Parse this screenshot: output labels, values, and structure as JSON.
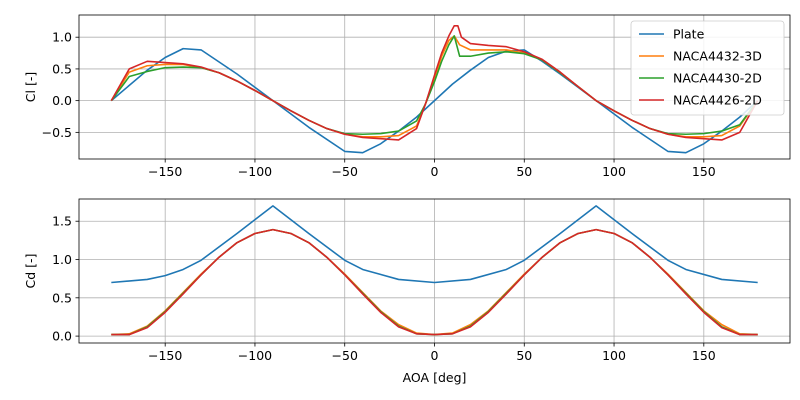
{
  "chart_data": [
    {
      "type": "line",
      "xlabel": "",
      "ylabel": "Cl [-]",
      "xlim": [
        -198,
        198
      ],
      "ylim": [
        -0.92,
        1.35
      ],
      "xticks": [
        -150,
        -100,
        -50,
        0,
        50,
        100,
        150
      ],
      "xtick_labels": [
        "−150",
        "−100",
        "−50",
        "0",
        "50",
        "100",
        "150"
      ],
      "yticks": [
        -0.5,
        0.0,
        0.5,
        1.0
      ],
      "ytick_labels": [
        "−0.5",
        "0.0",
        "0.5",
        "1.0"
      ],
      "grid": true,
      "legend": "upper right",
      "series": [
        {
          "name": "Plate",
          "color": "#1f77b4",
          "x": [
            -180,
            -160,
            -150,
            -140,
            -130,
            -110,
            -90,
            -70,
            -50,
            -40,
            -30,
            -20,
            -10,
            0,
            10,
            20,
            30,
            40,
            50,
            60,
            70,
            90,
            110,
            130,
            140,
            150,
            160,
            170,
            180
          ],
          "y": [
            0.0,
            0.48,
            0.68,
            0.82,
            0.8,
            0.42,
            0.0,
            -0.42,
            -0.8,
            -0.82,
            -0.68,
            -0.48,
            -0.26,
            0.0,
            0.26,
            0.48,
            0.68,
            0.78,
            0.8,
            0.62,
            0.42,
            0.0,
            -0.42,
            -0.8,
            -0.82,
            -0.68,
            -0.48,
            -0.26,
            0.0
          ]
        },
        {
          "name": "NACA4432-3D",
          "color": "#ff7f0e",
          "x": [
            -180,
            -170,
            -160,
            -150,
            -140,
            -130,
            -120,
            -110,
            -100,
            -90,
            -80,
            -70,
            -60,
            -50,
            -40,
            -30,
            -20,
            -10,
            -5,
            0,
            4,
            8,
            11,
            14,
            20,
            30,
            40,
            50,
            60,
            70,
            80,
            90,
            100,
            110,
            120,
            130,
            140,
            150,
            160,
            170,
            180
          ],
          "y": [
            0.0,
            0.45,
            0.55,
            0.57,
            0.57,
            0.52,
            0.44,
            0.31,
            0.16,
            0.0,
            -0.16,
            -0.31,
            -0.44,
            -0.53,
            -0.57,
            -0.57,
            -0.55,
            -0.4,
            -0.05,
            0.35,
            0.7,
            0.95,
            1.02,
            0.88,
            0.8,
            0.8,
            0.8,
            0.75,
            0.64,
            0.44,
            0.22,
            0.0,
            -0.16,
            -0.31,
            -0.44,
            -0.53,
            -0.57,
            -0.57,
            -0.55,
            -0.4,
            0.0
          ]
        },
        {
          "name": "NACA4430-2D",
          "color": "#2ca02c",
          "x": [
            -180,
            -170,
            -160,
            -150,
            -140,
            -130,
            -120,
            -110,
            -100,
            -90,
            -80,
            -70,
            -60,
            -50,
            -40,
            -30,
            -20,
            -10,
            -5,
            0,
            4,
            8,
            11,
            14,
            20,
            30,
            40,
            50,
            60,
            70,
            80,
            90,
            100,
            110,
            120,
            130,
            140,
            150,
            160,
            170,
            180
          ],
          "y": [
            0.0,
            0.38,
            0.46,
            0.52,
            0.53,
            0.52,
            0.44,
            0.31,
            0.16,
            0.0,
            -0.16,
            -0.31,
            -0.44,
            -0.52,
            -0.53,
            -0.52,
            -0.48,
            -0.32,
            -0.05,
            0.3,
            0.62,
            0.88,
            1.02,
            0.7,
            0.7,
            0.75,
            0.77,
            0.74,
            0.64,
            0.44,
            0.22,
            0.0,
            -0.16,
            -0.31,
            -0.44,
            -0.52,
            -0.53,
            -0.52,
            -0.48,
            -0.38,
            0.0
          ]
        },
        {
          "name": "NACA4426-2D",
          "color": "#d62728",
          "x": [
            -180,
            -170,
            -160,
            -150,
            -140,
            -130,
            -120,
            -110,
            -100,
            -90,
            -80,
            -70,
            -60,
            -50,
            -40,
            -30,
            -20,
            -10,
            -5,
            0,
            4,
            8,
            11,
            13,
            15,
            20,
            30,
            40,
            50,
            60,
            70,
            80,
            90,
            100,
            110,
            120,
            130,
            140,
            150,
            160,
            170,
            180
          ],
          "y": [
            0.0,
            0.5,
            0.62,
            0.6,
            0.58,
            0.53,
            0.44,
            0.31,
            0.16,
            0.0,
            -0.16,
            -0.31,
            -0.44,
            -0.53,
            -0.58,
            -0.6,
            -0.62,
            -0.44,
            -0.05,
            0.4,
            0.75,
            1.02,
            1.18,
            1.18,
            1.0,
            0.9,
            0.87,
            0.85,
            0.77,
            0.65,
            0.45,
            0.22,
            0.0,
            -0.16,
            -0.31,
            -0.44,
            -0.53,
            -0.58,
            -0.6,
            -0.62,
            -0.5,
            0.0
          ]
        }
      ]
    },
    {
      "type": "line",
      "xlabel": "AOA [deg]",
      "ylabel": "Cd [-]",
      "xlim": [
        -198,
        198
      ],
      "ylim": [
        -0.09,
        1.79
      ],
      "xticks": [
        -150,
        -100,
        -50,
        0,
        50,
        100,
        150
      ],
      "xtick_labels": [
        "−150",
        "−100",
        "−50",
        "0",
        "50",
        "100",
        "150"
      ],
      "yticks": [
        0.0,
        0.5,
        1.0,
        1.5
      ],
      "ytick_labels": [
        "0.0",
        "0.5",
        "1.0",
        "1.5"
      ],
      "grid": true,
      "series": [
        {
          "name": "Plate",
          "color": "#1f77b4",
          "x": [
            -180,
            -160,
            -150,
            -140,
            -130,
            -110,
            -90,
            -70,
            -50,
            -40,
            -20,
            0,
            20,
            40,
            50,
            70,
            90,
            110,
            130,
            140,
            160,
            180
          ],
          "y": [
            0.7,
            0.74,
            0.79,
            0.87,
            0.99,
            1.34,
            1.7,
            1.34,
            0.99,
            0.87,
            0.74,
            0.7,
            0.74,
            0.87,
            0.99,
            1.34,
            1.7,
            1.34,
            0.99,
            0.87,
            0.74,
            0.7
          ]
        },
        {
          "name": "NACA4432-3D",
          "color": "#ff7f0e",
          "x": [
            -180,
            -170,
            -160,
            -150,
            -140,
            -130,
            -120,
            -110,
            -100,
            -90,
            -80,
            -70,
            -60,
            -50,
            -40,
            -30,
            -20,
            -10,
            0,
            10,
            20,
            30,
            40,
            50,
            60,
            70,
            80,
            90,
            100,
            110,
            120,
            130,
            140,
            150,
            160,
            170,
            180
          ],
          "y": [
            0.02,
            0.03,
            0.13,
            0.33,
            0.57,
            0.81,
            1.03,
            1.22,
            1.34,
            1.39,
            1.34,
            1.22,
            1.03,
            0.81,
            0.57,
            0.33,
            0.15,
            0.04,
            0.02,
            0.04,
            0.15,
            0.33,
            0.57,
            0.81,
            1.03,
            1.22,
            1.34,
            1.39,
            1.34,
            1.22,
            1.03,
            0.81,
            0.57,
            0.33,
            0.15,
            0.03,
            0.02
          ]
        },
        {
          "name": "NACA4430-2D",
          "color": "#2ca02c",
          "x": [
            -180,
            -170,
            -160,
            -150,
            -140,
            -130,
            -120,
            -110,
            -100,
            -90,
            -80,
            -70,
            -60,
            -50,
            -40,
            -30,
            -20,
            -10,
            0,
            10,
            20,
            30,
            40,
            50,
            60,
            70,
            80,
            90,
            100,
            110,
            120,
            130,
            140,
            150,
            160,
            170,
            180
          ],
          "y": [
            0.02,
            0.02,
            0.12,
            0.32,
            0.56,
            0.8,
            1.03,
            1.22,
            1.34,
            1.39,
            1.34,
            1.22,
            1.03,
            0.8,
            0.56,
            0.32,
            0.13,
            0.03,
            0.02,
            0.03,
            0.13,
            0.32,
            0.56,
            0.8,
            1.03,
            1.22,
            1.34,
            1.39,
            1.34,
            1.22,
            1.03,
            0.8,
            0.56,
            0.32,
            0.12,
            0.02,
            0.02
          ]
        },
        {
          "name": "NACA4426-2D",
          "color": "#d62728",
          "x": [
            -180,
            -170,
            -160,
            -150,
            -140,
            -130,
            -120,
            -110,
            -100,
            -90,
            -80,
            -70,
            -60,
            -50,
            -40,
            -30,
            -20,
            -10,
            0,
            10,
            20,
            30,
            40,
            50,
            60,
            70,
            80,
            90,
            100,
            110,
            120,
            130,
            140,
            150,
            160,
            170,
            180
          ],
          "y": [
            0.02,
            0.02,
            0.11,
            0.31,
            0.55,
            0.8,
            1.03,
            1.22,
            1.34,
            1.39,
            1.34,
            1.22,
            1.03,
            0.8,
            0.55,
            0.31,
            0.12,
            0.03,
            0.02,
            0.03,
            0.12,
            0.31,
            0.55,
            0.8,
            1.03,
            1.22,
            1.34,
            1.39,
            1.34,
            1.22,
            1.03,
            0.8,
            0.55,
            0.31,
            0.11,
            0.02,
            0.02
          ]
        }
      ]
    }
  ]
}
